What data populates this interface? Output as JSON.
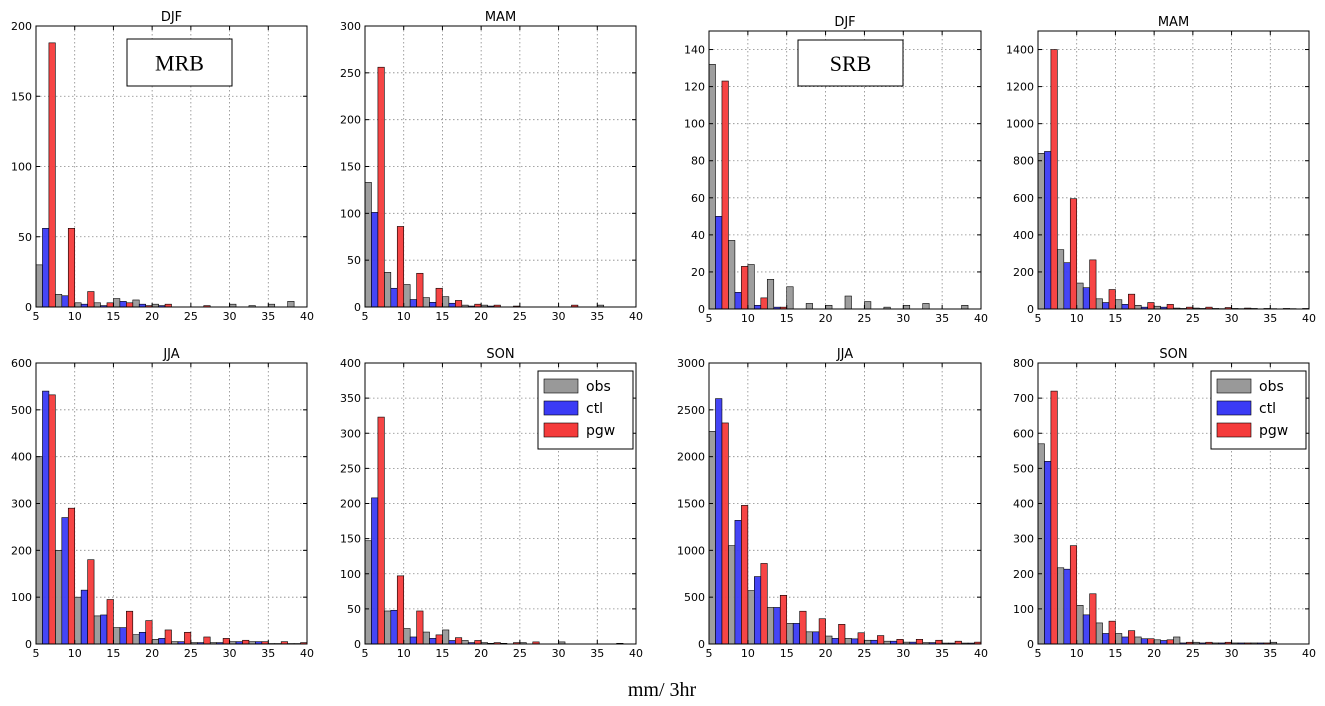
{
  "figure": {
    "xlabel": "mm/ 3hr",
    "region_labels": [
      "MRB",
      "SRB"
    ]
  },
  "colors": {
    "obs": "#999999",
    "ctl": "#3b3bf5",
    "pgw": "#f53b3b"
  },
  "chart_data": [
    {
      "type": "bar",
      "title": "DJF",
      "region": "MRB",
      "xlim": [
        5,
        40
      ],
      "xticks": [
        5,
        10,
        15,
        20,
        25,
        30,
        35,
        40
      ],
      "ylim": [
        0,
        200
      ],
      "yticks": [
        0,
        50,
        100,
        150,
        200
      ],
      "bin_width": 2.5,
      "x": [
        5,
        7.5,
        10,
        12.5,
        15,
        17.5,
        20,
        22.5,
        25,
        27.5,
        30,
        32.5,
        35,
        37.5
      ],
      "series": [
        {
          "name": "obs",
          "values": [
            30,
            9,
            3,
            3,
            6,
            5,
            2,
            0,
            0,
            0,
            2,
            1,
            2,
            4
          ]
        },
        {
          "name": "ctl",
          "values": [
            56,
            8,
            2,
            1,
            4,
            2,
            1,
            0,
            0,
            0,
            0,
            0,
            0,
            0
          ]
        },
        {
          "name": "pgw",
          "values": [
            188,
            56,
            11,
            3,
            3,
            1,
            2,
            0,
            1,
            0,
            0,
            0,
            0,
            0
          ]
        }
      ],
      "grid": true,
      "legend": false
    },
    {
      "type": "bar",
      "title": "MAM",
      "region": "MRB",
      "xlim": [
        5,
        40
      ],
      "xticks": [
        5,
        10,
        15,
        20,
        25,
        30,
        35,
        40
      ],
      "ylim": [
        0,
        300
      ],
      "yticks": [
        0,
        50,
        100,
        150,
        200,
        250,
        300
      ],
      "bin_width": 2.5,
      "x": [
        5,
        7.5,
        10,
        12.5,
        15,
        17.5,
        20,
        22.5,
        25,
        27.5,
        30,
        32.5,
        35,
        37.5
      ],
      "series": [
        {
          "name": "obs",
          "values": [
            133,
            37,
            24,
            10,
            11,
            2,
            2,
            0,
            0,
            0,
            0,
            0,
            2,
            0
          ]
        },
        {
          "name": "ctl",
          "values": [
            101,
            20,
            8,
            5,
            4,
            1,
            1,
            0,
            0,
            0,
            0,
            0,
            0,
            0
          ]
        },
        {
          "name": "pgw",
          "values": [
            256,
            86,
            36,
            20,
            7,
            3,
            2,
            1,
            0,
            0,
            2,
            0,
            0,
            0
          ]
        }
      ],
      "grid": true,
      "legend": false
    },
    {
      "type": "bar",
      "title": "DJF",
      "region": "SRB",
      "xlim": [
        5,
        40
      ],
      "xticks": [
        5,
        10,
        15,
        20,
        25,
        30,
        35,
        40
      ],
      "ylim": [
        0,
        150
      ],
      "yticks": [
        0,
        20,
        40,
        60,
        80,
        100,
        120,
        140
      ],
      "bin_width": 2.5,
      "x": [
        5,
        7.5,
        10,
        12.5,
        15,
        17.5,
        20,
        22.5,
        25,
        27.5,
        30,
        32.5,
        35,
        37.5
      ],
      "series": [
        {
          "name": "obs",
          "values": [
            132,
            37,
            24,
            16,
            12,
            3,
            2,
            7,
            4,
            1,
            2,
            3,
            0,
            2
          ]
        },
        {
          "name": "ctl",
          "values": [
            50,
            9,
            2,
            1,
            0,
            0,
            0,
            0,
            0,
            0,
            0,
            0,
            0,
            0
          ]
        },
        {
          "name": "pgw",
          "values": [
            123,
            23,
            6,
            1,
            0,
            0,
            0,
            0,
            0,
            0,
            0,
            0,
            0,
            0
          ]
        }
      ],
      "grid": true,
      "legend": false
    },
    {
      "type": "bar",
      "title": "MAM",
      "region": "SRB",
      "xlim": [
        5,
        40
      ],
      "xticks": [
        5,
        10,
        15,
        20,
        25,
        30,
        35,
        40
      ],
      "ylim": [
        0,
        1500
      ],
      "yticks": [
        0,
        200,
        400,
        600,
        800,
        1000,
        1200,
        1400
      ],
      "bin_width": 2.5,
      "x": [
        5,
        7.5,
        10,
        12.5,
        15,
        17.5,
        20,
        22.5,
        25,
        27.5,
        30,
        32.5,
        35,
        37.5
      ],
      "series": [
        {
          "name": "obs",
          "values": [
            840,
            320,
            140,
            55,
            50,
            20,
            15,
            5,
            5,
            3,
            3,
            3,
            2,
            2
          ]
        },
        {
          "name": "ctl",
          "values": [
            850,
            250,
            115,
            35,
            25,
            10,
            10,
            3,
            3,
            2,
            2,
            1,
            1,
            1
          ]
        },
        {
          "name": "pgw",
          "values": [
            1400,
            595,
            265,
            105,
            80,
            35,
            25,
            10,
            10,
            8,
            5,
            3,
            3,
            3
          ]
        }
      ],
      "grid": true,
      "legend": false
    },
    {
      "type": "bar",
      "title": "JJA",
      "region": "MRB",
      "xlim": [
        5,
        40
      ],
      "xticks": [
        5,
        10,
        15,
        20,
        25,
        30,
        35,
        40
      ],
      "ylim": [
        0,
        600
      ],
      "yticks": [
        0,
        100,
        200,
        300,
        400,
        500,
        600
      ],
      "bin_width": 2.5,
      "x": [
        5,
        7.5,
        10,
        12.5,
        15,
        17.5,
        20,
        22.5,
        25,
        27.5,
        30,
        32.5,
        35,
        37.5
      ],
      "series": [
        {
          "name": "obs",
          "values": [
            400,
            200,
            100,
            60,
            35,
            20,
            10,
            5,
            3,
            3,
            5,
            5,
            1,
            1
          ]
        },
        {
          "name": "ctl",
          "values": [
            540,
            270,
            115,
            62,
            35,
            25,
            12,
            5,
            3,
            3,
            5,
            5,
            1,
            1
          ]
        },
        {
          "name": "pgw",
          "values": [
            532,
            290,
            180,
            95,
            70,
            50,
            30,
            25,
            15,
            12,
            8,
            5,
            5,
            3
          ]
        }
      ],
      "grid": true,
      "legend": false
    },
    {
      "type": "bar",
      "title": "SON",
      "region": "MRB",
      "xlim": [
        5,
        40
      ],
      "xticks": [
        5,
        10,
        15,
        20,
        25,
        30,
        35,
        40
      ],
      "ylim": [
        0,
        400
      ],
      "yticks": [
        0,
        50,
        100,
        150,
        200,
        250,
        300,
        350,
        400
      ],
      "bin_width": 2.5,
      "x": [
        5,
        7.5,
        10,
        12.5,
        15,
        17.5,
        20,
        22.5,
        25,
        27.5,
        30,
        32.5,
        35,
        37.5
      ],
      "series": [
        {
          "name": "obs",
          "values": [
            147,
            47,
            22,
            17,
            20,
            5,
            2,
            1,
            2,
            0,
            3,
            0,
            0,
            1
          ]
        },
        {
          "name": "ctl",
          "values": [
            208,
            48,
            10,
            8,
            5,
            2,
            1,
            0,
            0,
            0,
            0,
            0,
            0,
            0
          ]
        },
        {
          "name": "pgw",
          "values": [
            323,
            97,
            47,
            13,
            9,
            5,
            2,
            2,
            3,
            0,
            0,
            0,
            0,
            0
          ]
        }
      ],
      "grid": true,
      "legend": true,
      "legend_position": "top-right"
    },
    {
      "type": "bar",
      "title": "JJA",
      "region": "SRB",
      "xlim": [
        5,
        40
      ],
      "xticks": [
        5,
        10,
        15,
        20,
        25,
        30,
        35,
        40
      ],
      "ylim": [
        0,
        3000
      ],
      "yticks": [
        0,
        500,
        1000,
        1500,
        2000,
        2500,
        3000
      ],
      "bin_width": 2.5,
      "x": [
        5,
        7.5,
        10,
        12.5,
        15,
        17.5,
        20,
        22.5,
        25,
        27.5,
        30,
        32.5,
        35,
        37.5
      ],
      "series": [
        {
          "name": "obs",
          "values": [
            2270,
            1050,
            570,
            390,
            220,
            130,
            85,
            60,
            40,
            30,
            20,
            15,
            10,
            10
          ]
        },
        {
          "name": "ctl",
          "values": [
            2620,
            1320,
            720,
            390,
            220,
            130,
            60,
            55,
            40,
            30,
            20,
            15,
            10,
            10
          ]
        },
        {
          "name": "pgw",
          "values": [
            2360,
            1480,
            860,
            520,
            350,
            270,
            210,
            120,
            90,
            50,
            50,
            40,
            30,
            20
          ]
        }
      ],
      "grid": true,
      "legend": false
    },
    {
      "type": "bar",
      "title": "SON",
      "region": "SRB",
      "xlim": [
        5,
        40
      ],
      "xticks": [
        5,
        10,
        15,
        20,
        25,
        30,
        35,
        40
      ],
      "ylim": [
        0,
        800
      ],
      "yticks": [
        0,
        100,
        200,
        300,
        400,
        500,
        600,
        700,
        800
      ],
      "bin_width": 2.5,
      "x": [
        5,
        7.5,
        10,
        12.5,
        15,
        17.5,
        20,
        22.5,
        25,
        27.5,
        30,
        32.5,
        35,
        37.5
      ],
      "series": [
        {
          "name": "obs",
          "values": [
            570,
            217,
            110,
            60,
            30,
            20,
            12,
            20,
            5,
            3,
            3,
            3,
            5,
            0
          ]
        },
        {
          "name": "ctl",
          "values": [
            520,
            213,
            83,
            30,
            20,
            15,
            10,
            3,
            3,
            3,
            3,
            3,
            0,
            0
          ]
        },
        {
          "name": "pgw",
          "values": [
            720,
            280,
            143,
            65,
            38,
            15,
            12,
            5,
            5,
            5,
            3,
            3,
            0,
            0
          ]
        }
      ],
      "grid": true,
      "legend": true,
      "legend_position": "top-right"
    }
  ]
}
